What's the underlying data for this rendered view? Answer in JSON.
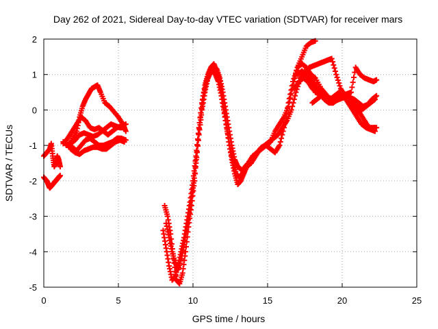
{
  "chart_data": {
    "type": "scatter",
    "title": "Day 262 of 2021, Sidereal Day-to-day VTEC variation (SDTVAR) for receiver mars",
    "xlabel": "GPS time / hours",
    "ylabel": "SDTVAR / TECUs",
    "xlim": [
      0,
      25
    ],
    "ylim": [
      -5,
      2
    ],
    "xticks": [
      "0",
      "5",
      "10",
      "15",
      "20",
      "25"
    ],
    "yticks": [
      "-5",
      "-4",
      "-3",
      "-2",
      "-1",
      "0",
      "1",
      "2"
    ],
    "grid": true,
    "marker": "plus",
    "color": "#ff0000",
    "series": [
      {
        "x": [
          0.0,
          0.2,
          0.4,
          0.5,
          0.6,
          0.7,
          0.8,
          0.9,
          1.0,
          1.1
        ],
        "y": [
          -1.3,
          -1.2,
          -1.1,
          -0.95,
          -1.3,
          -1.6,
          -1.5,
          -1.3,
          -1.4,
          -1.6
        ]
      },
      {
        "x": [
          0.0,
          0.2,
          0.3,
          0.4,
          0.5,
          0.6,
          0.7,
          0.8,
          0.9,
          1.0,
          1.1
        ],
        "y": [
          -1.9,
          -2.0,
          -2.1,
          -2.2,
          -2.15,
          -2.1,
          -2.05,
          -2.0,
          -1.95,
          -1.9,
          -1.85
        ]
      },
      {
        "x": [
          1.3,
          1.6,
          1.9,
          2.2,
          2.4,
          2.6,
          2.8,
          3.0,
          3.2,
          3.4,
          3.6,
          3.8,
          4.1,
          4.4,
          4.7,
          5.0,
          5.3,
          5.5
        ],
        "y": [
          -0.9,
          -1.0,
          -0.85,
          -0.6,
          -0.2,
          0.1,
          0.3,
          0.45,
          0.6,
          0.65,
          0.7,
          0.5,
          0.2,
          0.1,
          -0.05,
          -0.2,
          -0.4,
          -0.6
        ]
      },
      {
        "x": [
          1.3,
          1.6,
          1.9,
          2.2,
          2.5,
          2.8,
          3.1,
          3.4,
          3.7,
          4.0,
          4.3,
          4.6,
          4.9,
          5.2,
          5.5
        ],
        "y": [
          -0.95,
          -0.8,
          -0.6,
          -0.4,
          -0.2,
          -0.3,
          -0.5,
          -0.55,
          -0.5,
          -0.6,
          -0.7,
          -0.6,
          -0.5,
          -0.45,
          -0.4
        ]
      },
      {
        "x": [
          1.5,
          1.8,
          2.1,
          2.4,
          2.7,
          3.0,
          3.3,
          3.6,
          3.9,
          4.2,
          4.5,
          4.8,
          5.1,
          5.4
        ],
        "y": [
          -1.0,
          -0.95,
          -0.85,
          -0.7,
          -0.65,
          -0.7,
          -0.75,
          -0.7,
          -0.6,
          -0.5,
          -0.4,
          -0.45,
          -0.5,
          -0.5
        ]
      },
      {
        "x": [
          1.6,
          1.9,
          2.2,
          2.5,
          2.8,
          3.1,
          3.4,
          3.7,
          4.0,
          4.3,
          4.6,
          4.9,
          5.2,
          5.5
        ],
        "y": [
          -1.0,
          -1.05,
          -1.15,
          -1.0,
          -0.85,
          -0.8,
          -0.9,
          -1.0,
          -1.0,
          -0.95,
          -0.9,
          -0.8,
          -0.8,
          -0.85
        ]
      },
      {
        "x": [
          1.8,
          2.1,
          2.4,
          2.7,
          3.0,
          3.3,
          3.6,
          3.9,
          4.2,
          4.5,
          4.8,
          5.1,
          5.4
        ],
        "y": [
          -1.1,
          -1.2,
          -1.25,
          -1.15,
          -1.1,
          -1.05,
          -1.05,
          -1.1,
          -1.1,
          -1.0,
          -0.9,
          -0.85,
          -0.9
        ]
      },
      {
        "x": [
          8.0,
          8.2,
          8.4,
          8.6,
          8.8,
          9.0,
          9.2,
          9.4,
          9.6,
          9.8,
          10.0,
          10.2,
          10.4,
          10.6,
          10.8,
          11.0,
          11.2,
          11.4,
          11.6,
          11.8,
          12.0,
          12.2,
          12.4,
          12.6,
          12.8,
          13.0,
          13.2,
          13.4,
          13.6,
          13.8,
          14.0,
          14.3,
          14.6,
          14.9,
          15.2,
          15.5,
          15.8,
          16.1,
          16.4,
          16.7,
          17.0,
          17.3,
          17.6,
          17.9,
          18.2
        ],
        "y": [
          -3.4,
          -3.9,
          -4.4,
          -4.8,
          -4.7,
          -4.4,
          -4.0,
          -3.6,
          -3.1,
          -2.6,
          -2.0,
          -1.3,
          -0.5,
          0.2,
          0.7,
          1.0,
          1.2,
          1.3,
          1.1,
          0.8,
          0.3,
          -0.3,
          -0.9,
          -1.4,
          -1.8,
          -2.1,
          -2.0,
          -1.8,
          -1.6,
          -1.5,
          -1.4,
          -1.2,
          -1.05,
          -1.0,
          -0.9,
          -0.6,
          -0.4,
          -0.2,
          0.1,
          0.7,
          1.2,
          1.5,
          1.8,
          1.9,
          1.95
        ]
      },
      {
        "x": [
          8.1,
          8.3,
          8.5,
          8.7,
          8.9,
          9.1,
          9.3,
          9.5,
          9.7,
          9.9,
          10.1,
          10.3,
          10.5,
          10.7,
          10.9,
          11.1,
          11.3,
          11.5,
          11.7,
          11.9,
          12.1,
          12.3,
          12.5,
          12.7,
          12.9,
          13.1,
          13.3,
          13.5,
          13.7,
          14.0,
          14.3,
          14.6,
          14.9,
          15.2,
          15.5,
          15.8,
          16.1,
          16.4,
          16.7,
          17.0,
          17.3,
          17.6,
          17.9,
          18.2,
          18.6,
          19.0
        ],
        "y": [
          -2.7,
          -3.0,
          -3.5,
          -4.2,
          -4.8,
          -4.9,
          -4.6,
          -4.0,
          -3.3,
          -2.7,
          -2.0,
          -1.0,
          -0.2,
          0.4,
          0.8,
          1.0,
          1.1,
          1.0,
          0.8,
          0.4,
          -0.1,
          -0.6,
          -1.1,
          -1.5,
          -1.8,
          -1.9,
          -1.8,
          -1.6,
          -1.5,
          -1.3,
          -1.2,
          -1.1,
          -1.0,
          -1.1,
          -1.2,
          -1.0,
          -0.5,
          0.2,
          0.8,
          1.2,
          1.3,
          1.2,
          1.0,
          0.9,
          0.6,
          0.4
        ]
      },
      {
        "x": [
          8.2,
          8.4,
          8.6,
          8.8,
          9.0,
          9.2,
          9.4,
          9.6,
          9.8,
          10.0,
          10.2,
          10.4,
          10.6,
          10.8,
          11.0,
          11.2,
          11.4,
          11.6,
          11.8,
          12.0,
          12.2,
          12.4,
          12.6,
          12.8,
          13.0,
          13.3,
          13.6,
          13.9,
          14.2,
          14.5,
          14.8,
          15.1,
          15.4,
          15.7,
          16.0,
          16.3,
          16.6,
          16.9,
          17.2,
          17.5,
          17.8,
          18.1,
          18.5,
          18.9,
          19.3
        ],
        "y": [
          -3.2,
          -3.6,
          -4.0,
          -4.3,
          -4.5,
          -4.2,
          -3.8,
          -3.3,
          -2.8,
          -2.2,
          -1.5,
          -0.7,
          0.0,
          0.5,
          0.9,
          1.1,
          1.2,
          1.15,
          0.9,
          0.5,
          0.0,
          -0.5,
          -1.0,
          -1.4,
          -1.6,
          -1.7,
          -1.6,
          -1.5,
          -1.3,
          -1.1,
          -1.0,
          -0.9,
          -0.8,
          -0.7,
          -0.5,
          -0.3,
          0.0,
          0.5,
          0.9,
          1.0,
          0.9,
          0.7,
          0.5,
          0.3,
          0.2
        ]
      },
      {
        "x": [
          16.8,
          17.1,
          17.4,
          17.7,
          18.0,
          18.3,
          18.6,
          18.9,
          19.2,
          19.5,
          19.8,
          20.1,
          20.4,
          20.7,
          21.0,
          21.3,
          21.6,
          21.9,
          22.2
        ],
        "y": [
          0.6,
          0.8,
          0.9,
          0.8,
          0.6,
          0.5,
          0.4,
          0.35,
          0.3,
          0.4,
          0.5,
          0.4,
          0.2,
          0.0,
          -0.2,
          -0.4,
          -0.5,
          -0.55,
          -0.6
        ]
      },
      {
        "x": [
          17.0,
          17.3,
          17.6,
          17.9,
          18.2,
          18.5,
          18.8,
          19.1,
          19.4,
          19.7,
          20.0,
          20.3,
          20.6,
          20.9,
          21.2,
          21.5,
          21.8,
          22.1,
          22.3
        ],
        "y": [
          1.0,
          1.1,
          1.0,
          0.9,
          0.7,
          0.5,
          0.3,
          0.2,
          0.2,
          0.3,
          0.4,
          0.3,
          0.1,
          0.0,
          -0.1,
          -0.3,
          -0.5,
          -0.5,
          -0.5
        ]
      },
      {
        "x": [
          17.2,
          17.5,
          17.8,
          18.1,
          18.4,
          18.7,
          19.0,
          19.3,
          19.6,
          19.9,
          20.2,
          20.5,
          20.8,
          21.1,
          21.4,
          21.7,
          22.0,
          22.3
        ],
        "y": [
          0.9,
          1.1,
          1.2,
          1.25,
          1.3,
          1.35,
          1.4,
          1.45,
          1.0,
          0.6,
          0.4,
          0.35,
          0.3,
          0.2,
          0.1,
          0.15,
          0.3,
          0.4
        ]
      },
      {
        "x": [
          18.2,
          18.5,
          18.8,
          19.1,
          19.4,
          19.7,
          20.0,
          20.3,
          20.6,
          20.9,
          21.2,
          21.5,
          21.8,
          22.1,
          22.3
        ],
        "y": [
          0.5,
          0.45,
          0.4,
          0.35,
          0.3,
          0.35,
          0.4,
          0.45,
          0.5,
          1.2,
          1.0,
          0.9,
          0.85,
          0.8,
          0.85
        ]
      },
      {
        "x": [
          18.0,
          18.3,
          18.6,
          18.9,
          19.2,
          19.5,
          19.8,
          20.1,
          20.4,
          20.7,
          21.0,
          21.3,
          21.6,
          21.9,
          22.2
        ],
        "y": [
          0.2,
          0.3,
          0.4,
          0.35,
          0.3,
          0.25,
          0.3,
          0.35,
          0.3,
          0.2,
          0.1,
          0.0,
          0.1,
          0.2,
          0.3
        ]
      }
    ]
  }
}
